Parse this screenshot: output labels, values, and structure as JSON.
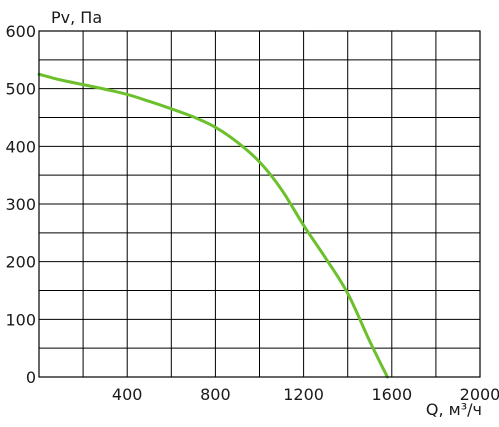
{
  "chart_data": {
    "type": "line",
    "xlabel": "Q, м³/ч",
    "ylabel": "Pv, Па",
    "xlim": [
      0,
      2000
    ],
    "ylim": [
      0,
      600
    ],
    "x_ticks": [
      "400",
      "800",
      "1200",
      "1600",
      "2000"
    ],
    "y_ticks": [
      "0",
      "100",
      "200",
      "300",
      "400",
      "500",
      "600"
    ],
    "grid": true,
    "series": [
      {
        "color": "#6cc02c",
        "x": [
          0,
          100,
          200,
          300,
          400,
          500,
          600,
          700,
          800,
          900,
          1000,
          1100,
          1200,
          1300,
          1400,
          1500,
          1580
        ],
        "y": [
          525,
          515,
          507,
          499,
          490,
          478,
          465,
          451,
          433,
          407,
          373,
          325,
          263,
          206,
          145,
          62,
          0
        ]
      }
    ]
  }
}
